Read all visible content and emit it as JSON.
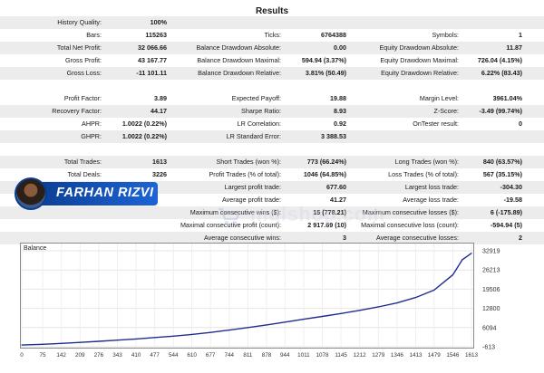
{
  "report": {
    "title": "Results",
    "rows": [
      {
        "shade": true,
        "c1": [
          "History Quality:",
          "100%"
        ],
        "c2": [
          "",
          ""
        ],
        "c3": [
          "",
          ""
        ]
      },
      {
        "shade": false,
        "c1": [
          "Bars:",
          "115263"
        ],
        "c2": [
          "Ticks:",
          "6764388"
        ],
        "c3": [
          "Symbols:",
          "1"
        ]
      },
      {
        "shade": true,
        "c1": [
          "Total Net Profit:",
          "32 066.66"
        ],
        "c2": [
          "Balance Drawdown Absolute:",
          "0.00"
        ],
        "c3": [
          "Equity Drawdown Absolute:",
          "11.87"
        ]
      },
      {
        "shade": false,
        "c1": [
          "Gross Profit:",
          "43 167.77"
        ],
        "c2": [
          "Balance Drawdown Maximal:",
          "594.94 (3.37%)"
        ],
        "c3": [
          "Equity Drawdown Maximal:",
          "726.04 (4.15%)"
        ]
      },
      {
        "shade": true,
        "c1": [
          "Gross Loss:",
          "-11 101.11"
        ],
        "c2": [
          "Balance Drawdown Relative:",
          "3.81% (50.49)"
        ],
        "c3": [
          "Equity Drawdown Relative:",
          "6.22% (83.43)"
        ]
      },
      {
        "shade": false,
        "c1": [
          "",
          ""
        ],
        "c2": [
          "",
          ""
        ],
        "c3": [
          "",
          ""
        ]
      },
      {
        "shade": false,
        "c1": [
          "Profit Factor:",
          "3.89"
        ],
        "c2": [
          "Expected Payoff:",
          "19.88"
        ],
        "c3": [
          "Margin Level:",
          "3961.04%"
        ]
      },
      {
        "shade": true,
        "c1": [
          "Recovery Factor:",
          "44.17"
        ],
        "c2": [
          "Sharpe Ratio:",
          "8.93"
        ],
        "c3": [
          "Z-Score:",
          "-3.49 (99.74%)"
        ]
      },
      {
        "shade": false,
        "c1": [
          "AHPR:",
          "1.0022 (0.22%)"
        ],
        "c2": [
          "LR Correlation:",
          "0.92"
        ],
        "c3": [
          "OnTester result:",
          "0"
        ]
      },
      {
        "shade": true,
        "c1": [
          "GHPR:",
          "1.0022 (0.22%)"
        ],
        "c2": [
          "LR Standard Error:",
          "3 388.53"
        ],
        "c3": [
          "",
          ""
        ]
      },
      {
        "shade": false,
        "c1": [
          "",
          ""
        ],
        "c2": [
          "",
          ""
        ],
        "c3": [
          "",
          ""
        ]
      },
      {
        "shade": true,
        "c1": [
          "Total Trades:",
          "1613"
        ],
        "c2": [
          "Short Trades (won %):",
          "773 (66.24%)"
        ],
        "c3": [
          "Long Trades (won %):",
          "840 (63.57%)"
        ]
      },
      {
        "shade": false,
        "c1": [
          "Total Deals:",
          "3226"
        ],
        "c2": [
          "Profit Trades (% of total):",
          "1046 (64.85%)"
        ],
        "c3": [
          "Loss Trades (% of total):",
          "567 (35.15%)"
        ]
      },
      {
        "shade": true,
        "c1": [
          "",
          ""
        ],
        "c2": [
          "Largest profit trade:",
          "677.60"
        ],
        "c3": [
          "Largest loss trade:",
          "-304.30"
        ]
      },
      {
        "shade": false,
        "c1": [
          "",
          ""
        ],
        "c2": [
          "Average profit trade:",
          "41.27"
        ],
        "c3": [
          "Average loss trade:",
          "-19.58"
        ]
      },
      {
        "shade": true,
        "c1": [
          "",
          ""
        ],
        "c2": [
          "Maximum consecutive wins ($):",
          "15 (778.21)"
        ],
        "c3": [
          "Maximum consecutive losses ($):",
          "6 (-175.89)"
        ]
      },
      {
        "shade": false,
        "c1": [
          "",
          ""
        ],
        "c2": [
          "Maximal consecutive profit (count):",
          "2 917.69 (10)"
        ],
        "c3": [
          "Maximal consecutive loss (count):",
          "-594.94 (5)"
        ]
      },
      {
        "shade": true,
        "c1": [
          "",
          ""
        ],
        "c2": [
          "Average consecutive wins:",
          "3"
        ],
        "c3": [
          "Average consecutive losses:",
          "2"
        ]
      }
    ]
  },
  "badge": {
    "name": "FARHAN RIZVI"
  },
  "watermark": {
    "text": "mqlshop.com"
  },
  "chart_data": {
    "type": "line",
    "title": "Balance",
    "x_ticks": [
      "0",
      "75",
      "142",
      "209",
      "276",
      "343",
      "410",
      "477",
      "544",
      "610",
      "677",
      "744",
      "811",
      "878",
      "944",
      "1011",
      "1078",
      "1145",
      "1212",
      "1279",
      "1346",
      "1413",
      "1479",
      "1546",
      "1613"
    ],
    "y_ticks": [
      "32919",
      "26213",
      "19506",
      "12800",
      "6094",
      "-613"
    ],
    "ylim": [
      -613,
      32919
    ],
    "xlim": [
      0,
      1613
    ],
    "series": [
      {
        "color": "#1f2f8f",
        "x": [
          0,
          75,
          142,
          209,
          276,
          343,
          410,
          477,
          544,
          610,
          677,
          744,
          811,
          878,
          944,
          1011,
          1078,
          1145,
          1212,
          1279,
          1346,
          1413,
          1479,
          1546,
          1580,
          1613
        ],
        "values": [
          0,
          250,
          550,
          900,
          1300,
          1700,
          2100,
          2600,
          3100,
          3700,
          4400,
          5200,
          6100,
          7000,
          8000,
          9000,
          10000,
          11000,
          12100,
          13300,
          14700,
          16600,
          19200,
          24500,
          29800,
          32067
        ]
      }
    ]
  }
}
